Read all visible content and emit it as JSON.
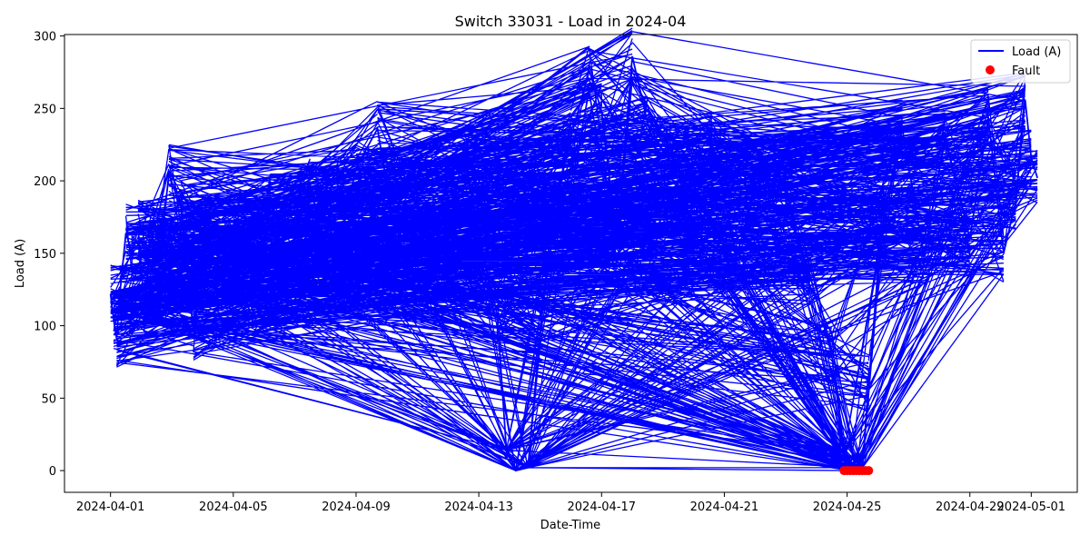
{
  "chart_data": {
    "type": "line",
    "title": "Switch 33031 - Load in 2024-04",
    "xlabel": "Date-Time",
    "ylabel": "Load (A)",
    "xlim": [
      -1.5,
      31.5
    ],
    "ylim": [
      -15,
      301
    ],
    "x_ticks": [
      {
        "value": 0,
        "label": "2024-04-01"
      },
      {
        "value": 4,
        "label": "2024-04-05"
      },
      {
        "value": 8,
        "label": "2024-04-09"
      },
      {
        "value": 12,
        "label": "2024-04-13"
      },
      {
        "value": 16,
        "label": "2024-04-17"
      },
      {
        "value": 20,
        "label": "2024-04-21"
      },
      {
        "value": 24,
        "label": "2024-04-25"
      },
      {
        "value": 28,
        "label": "2024-04-29"
      },
      {
        "value": 30,
        "label": "2024-05-01"
      }
    ],
    "y_ticks": [
      0,
      50,
      100,
      150,
      200,
      250,
      300
    ],
    "legend": {
      "position": "top-right",
      "entries": [
        {
          "label": "Load (A)",
          "kind": "line",
          "color": "#0000ff"
        },
        {
          "label": "Fault",
          "kind": "marker",
          "color": "#ff0000"
        }
      ]
    },
    "series": [
      {
        "name": "Load (A)",
        "color": "#0000ff",
        "x_day": [
          0.0,
          0.1,
          0.2,
          0.3,
          0.5,
          0.7,
          0.9,
          1.1,
          1.3,
          1.6,
          1.9,
          2.3,
          2.7,
          3.1,
          3.5,
          4.0,
          4.6,
          5.2,
          5.8,
          6.5,
          7.2,
          8.0,
          8.7,
          9.3,
          10.0,
          10.8,
          11.5,
          12.1,
          12.6,
          12.9,
          13.2,
          13.6,
          14.0,
          14.5,
          15.0,
          15.6,
          16.0,
          16.5,
          17.0,
          17.5,
          18.1,
          18.8,
          19.6,
          20.4,
          21.2,
          22.0,
          22.8,
          23.5,
          23.9,
          24.1,
          24.3,
          24.5,
          24.7,
          25.2,
          25.8,
          26.5,
          27.2,
          28.0,
          28.6,
          29.1,
          29.5,
          29.8,
          30.0,
          30.2
        ],
        "y": [
          122,
          104,
          91,
          121,
          164,
          150,
          168,
          112,
          160,
          144,
          205,
          181,
          96,
          172,
          133,
          160,
          112,
          186,
          148,
          198,
          131,
          209,
          236,
          160,
          185,
          138,
          221,
          152,
          108,
          14,
          0,
          2,
          96,
          186,
          230,
          276,
          248,
          158,
          286,
          240,
          196,
          170,
          226,
          148,
          210,
          188,
          134,
          80,
          12,
          0,
          0,
          2,
          60,
          176,
          236,
          148,
          230,
          160,
          244,
          150,
          186,
          256,
          216,
          202
        ]
      },
      {
        "name": "Fault",
        "color": "#ff0000",
        "x_day": [
          23.9,
          24.0,
          24.1,
          24.2,
          24.3,
          24.4,
          24.5,
          24.6,
          24.7
        ],
        "y": [
          0,
          0,
          0,
          0,
          0,
          0,
          0,
          0,
          0
        ]
      }
    ]
  }
}
